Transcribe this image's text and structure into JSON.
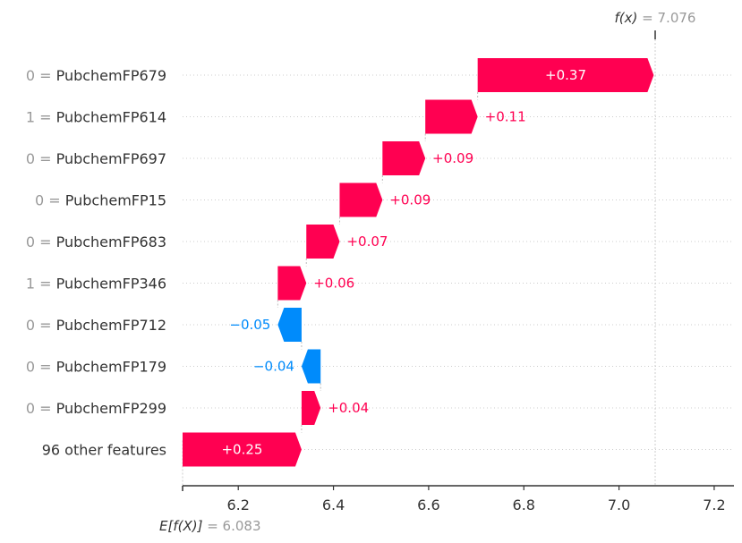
{
  "chart_data": {
    "type": "waterfall",
    "base_value": 6.083,
    "final_value": 7.076,
    "base_label_prefix": "E[f(X)]",
    "base_label_value": "= 6.083",
    "final_label_prefix": "f(x)",
    "final_label_value": "= 7.076",
    "xlim": [
      6.08,
      7.24
    ],
    "xticks": [
      6.2,
      6.4,
      6.6,
      6.8,
      7.0,
      7.2
    ],
    "xtick_labels": [
      "6.2",
      "6.4",
      "6.6",
      "6.8",
      "7.0",
      "7.2"
    ],
    "features": [
      {
        "value": "0",
        "name": "PubchemFP679",
        "label": "0 = PubchemFP679",
        "contribution": 0.37,
        "text": "+0.37"
      },
      {
        "value": "1",
        "name": "PubchemFP614",
        "label": "1 = PubchemFP614",
        "contribution": 0.11,
        "text": "+0.11"
      },
      {
        "value": "0",
        "name": "PubchemFP697",
        "label": "0 = PubchemFP697",
        "contribution": 0.09,
        "text": "+0.09"
      },
      {
        "value": "0",
        "name": "PubchemFP15",
        "label": "0 = PubchemFP15",
        "contribution": 0.09,
        "text": "+0.09"
      },
      {
        "value": "0",
        "name": "PubchemFP683",
        "label": "0 = PubchemFP683",
        "contribution": 0.07,
        "text": "+0.07"
      },
      {
        "value": "1",
        "name": "PubchemFP346",
        "label": "1 = PubchemFP346",
        "contribution": 0.06,
        "text": "+0.06"
      },
      {
        "value": "0",
        "name": "PubchemFP712",
        "label": "0 = PubchemFP712",
        "contribution": -0.05,
        "text": "−0.05"
      },
      {
        "value": "0",
        "name": "PubchemFP179",
        "label": "0 = PubchemFP179",
        "contribution": -0.04,
        "text": "−0.04"
      },
      {
        "value": "0",
        "name": "PubchemFP299",
        "label": "0 = PubchemFP299",
        "contribution": 0.04,
        "text": "+0.04"
      },
      {
        "value": "",
        "name": "96 other features",
        "label": "96 other features",
        "contribution": 0.25,
        "text": "+0.25"
      }
    ],
    "colors": {
      "positive": "#ff0051",
      "negative": "#008bfb",
      "feature_value": "#999999",
      "label": "#333333",
      "axis": "#333333",
      "gridline": "#cccccc"
    }
  }
}
